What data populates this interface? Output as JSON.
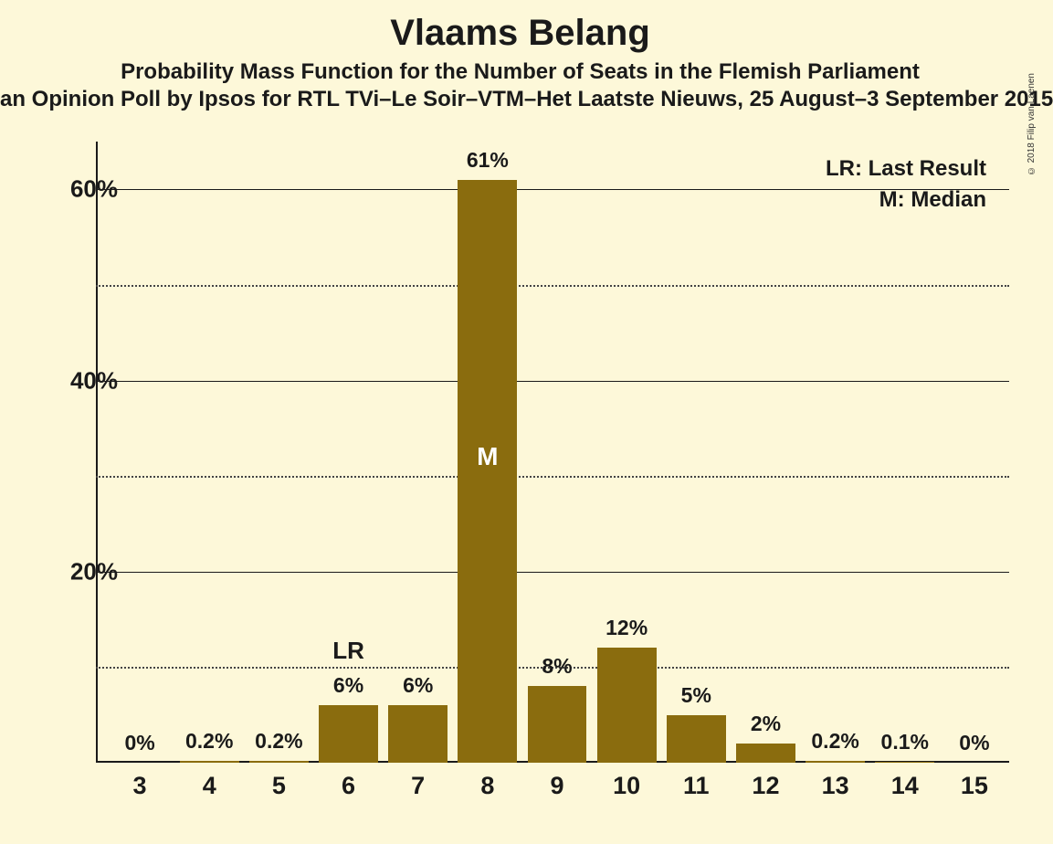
{
  "title": "Vlaams Belang",
  "subtitle1": "Probability Mass Function for the Number of Seats in the Flemish Parliament",
  "subtitle2": "an Opinion Poll by Ipsos for RTL TVi–Le Soir–VTM–Het Laatste Nieuws, 25 August–3 September 2015",
  "copyright": "© 2018 Filip van Laenen",
  "chart": {
    "type": "bar",
    "background_color": "#fdf8d9",
    "bar_color": "#8a6c0e",
    "axis_color": "#1a1a1a",
    "grid_color": "#1a1a1a",
    "bar_width_ratio": 0.85,
    "y_axis": {
      "min": 0,
      "max": 65,
      "major_ticks": [
        20,
        40,
        60
      ],
      "minor_ticks": [
        10,
        30,
        50
      ],
      "tick_labels": [
        "20%",
        "40%",
        "60%"
      ]
    },
    "x_categories": [
      "3",
      "4",
      "5",
      "6",
      "7",
      "8",
      "9",
      "10",
      "11",
      "12",
      "13",
      "14",
      "15"
    ],
    "values": [
      0,
      0.2,
      0.2,
      6,
      6,
      61,
      8,
      12,
      5,
      2,
      0.2,
      0.1,
      0
    ],
    "value_labels": [
      "0%",
      "0.2%",
      "0.2%",
      "6%",
      "6%",
      "61%",
      "8%",
      "12%",
      "5%",
      "2%",
      "0.2%",
      "0.1%",
      "0%"
    ],
    "markers": {
      "LR": {
        "index": 3,
        "label": "LR",
        "color": "#1a1a1a"
      },
      "M": {
        "index": 5,
        "label": "M",
        "color": "#ffffff",
        "inside": true
      }
    },
    "legend": {
      "LR": "LR: Last Result",
      "M": "M: Median"
    }
  }
}
